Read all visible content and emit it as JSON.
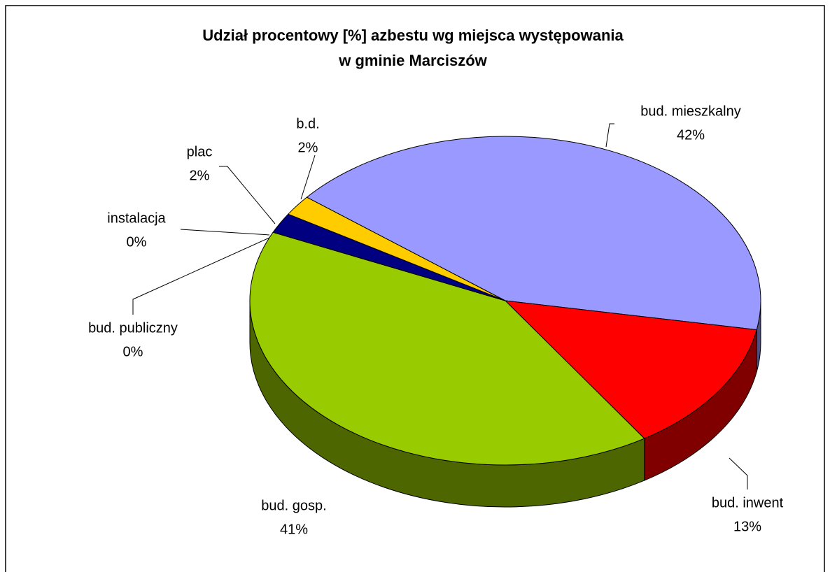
{
  "chart_data": {
    "type": "pie3d",
    "title": [
      "Udział procentowy [%] azbestu wg miejsca występowania",
      "w gminie Marciszów"
    ],
    "categories": [
      "bud. mieszkalny",
      "bud. inwent",
      "bud. gosp.",
      "bud. publiczny",
      "instalacja",
      "plac",
      "b.d."
    ],
    "values": [
      42,
      13,
      41,
      0,
      0,
      2,
      2
    ],
    "value_labels": [
      "42%",
      "13%",
      "41%",
      "0%",
      "0%",
      "2%",
      "2%"
    ],
    "colors": [
      "#9999ff",
      "#ff0000",
      "#99cc00",
      "#993366",
      "#ffffcc",
      "#000080",
      "#ffcc00"
    ]
  }
}
